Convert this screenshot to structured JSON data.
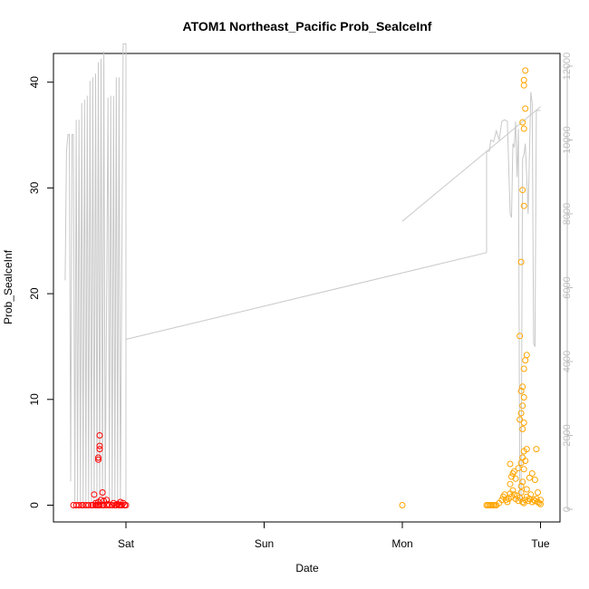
{
  "chart_data": {
    "type": "scatter",
    "title": "ATOM1 Northeast_Pacific Prob_SealceInf",
    "xlabel": "Date",
    "ylabel": "Prob_SealceInf",
    "x_unit": "days from Sat",
    "xlim": [
      -0.44,
      0.1
    ],
    "ylim": [
      -1.5,
      42.5
    ],
    "x_ticks": [
      {
        "at": 0,
        "label": "Sat"
      },
      {
        "at": 1,
        "label": "Sun"
      },
      {
        "at": 2,
        "label": "Mon"
      },
      {
        "at": 3,
        "label": "Tue"
      }
    ],
    "y_ticks": [
      0,
      10,
      20,
      30,
      40
    ],
    "secondary_axis": {
      "side": "right",
      "ticks": [
        0,
        2000,
        4000,
        6000,
        8000,
        10000,
        12000
      ],
      "ylim": [
        -150,
        12700
      ],
      "color": "#bdbdbd"
    },
    "grid": false,
    "legend": "none",
    "series": [
      {
        "color": "#ff0000",
        "marker": "open-circle",
        "points": [
          [
            -0.38,
            0
          ],
          [
            -0.36,
            0
          ],
          [
            -0.34,
            0
          ],
          [
            -0.32,
            0
          ],
          [
            -0.31,
            0
          ],
          [
            -0.29,
            0
          ],
          [
            -0.27,
            0
          ],
          [
            -0.25,
            0
          ],
          [
            -0.24,
            0
          ],
          [
            -0.22,
            0
          ],
          [
            -0.21,
            0
          ],
          [
            -0.2,
            0
          ],
          [
            -0.19,
            0
          ],
          [
            -0.17,
            0
          ],
          [
            -0.16,
            0
          ],
          [
            -0.14,
            0
          ],
          [
            -0.12,
            0
          ],
          [
            -0.1,
            0
          ],
          [
            -0.08,
            0
          ],
          [
            -0.07,
            0
          ],
          [
            -0.05,
            0
          ],
          [
            -0.04,
            0
          ],
          [
            -0.03,
            0
          ],
          [
            -0.01,
            0
          ],
          [
            0,
            0
          ],
          [
            -0.22,
            0.2
          ],
          [
            -0.2,
            0.3
          ],
          [
            -0.18,
            0.5
          ],
          [
            -0.16,
            0.4
          ],
          [
            -0.13,
            0.1
          ],
          [
            -0.09,
            0.2
          ],
          [
            -0.06,
            0.1
          ],
          [
            -0.04,
            0.3
          ],
          [
            -0.02,
            0.2
          ],
          [
            -0.23,
            1.0
          ],
          [
            -0.17,
            1.2
          ],
          [
            -0.14,
            0.5
          ],
          [
            -0.2,
            4.3
          ],
          [
            -0.2,
            4.5
          ],
          [
            -0.19,
            5.3
          ],
          [
            -0.19,
            5.6
          ],
          [
            -0.19,
            6.6
          ]
        ]
      },
      {
        "color": "#ffa500",
        "marker": "open-circle",
        "points": [
          [
            2.0,
            0
          ],
          [
            2.61,
            0
          ],
          [
            2.62,
            0
          ],
          [
            2.63,
            0
          ],
          [
            2.64,
            0
          ],
          [
            2.65,
            0
          ],
          [
            2.66,
            0
          ],
          [
            2.67,
            0
          ],
          [
            2.68,
            0
          ],
          [
            2.7,
            0.2
          ],
          [
            2.72,
            0.5
          ],
          [
            2.73,
            0.8
          ],
          [
            2.74,
            1.0
          ],
          [
            2.75,
            0.5
          ],
          [
            2.76,
            0.3
          ],
          [
            2.77,
            0.6
          ],
          [
            2.78,
            1.1
          ],
          [
            2.79,
            0.8
          ],
          [
            2.8,
            1.4
          ],
          [
            2.81,
            1.0
          ],
          [
            2.82,
            0.6
          ],
          [
            2.83,
            0.9
          ],
          [
            2.84,
            0.4
          ],
          [
            2.85,
            0.7
          ],
          [
            2.86,
            1.2
          ],
          [
            2.87,
            0.3
          ],
          [
            2.88,
            0.2
          ],
          [
            2.89,
            0.5
          ],
          [
            2.9,
            0.8
          ],
          [
            2.91,
            0.4
          ],
          [
            2.92,
            0.6
          ],
          [
            2.93,
            1.0
          ],
          [
            2.94,
            0.3
          ],
          [
            2.95,
            0.5
          ],
          [
            2.96,
            0.4
          ],
          [
            2.97,
            0.6
          ],
          [
            2.98,
            0.3
          ],
          [
            2.99,
            0.2
          ],
          [
            3.0,
            0.1
          ],
          [
            3.0,
            0.5
          ],
          [
            2.78,
            2.0
          ],
          [
            2.79,
            2.7
          ],
          [
            2.8,
            3.0
          ],
          [
            2.81,
            3.2
          ],
          [
            2.82,
            2.5
          ],
          [
            2.84,
            3.5
          ],
          [
            2.86,
            1.8
          ],
          [
            2.87,
            2.2
          ],
          [
            2.88,
            3.4
          ],
          [
            2.9,
            1.5
          ],
          [
            2.92,
            2.6
          ],
          [
            2.94,
            3.0
          ],
          [
            2.96,
            2.4
          ],
          [
            2.98,
            1.2
          ],
          [
            2.78,
            3.9
          ],
          [
            2.86,
            4.0
          ],
          [
            2.87,
            4.5
          ],
          [
            2.88,
            5.1
          ],
          [
            2.89,
            4.2
          ],
          [
            2.9,
            5.3
          ],
          [
            2.97,
            5.3
          ],
          [
            2.87,
            7.2
          ],
          [
            2.88,
            7.8
          ],
          [
            2.85,
            8.1
          ],
          [
            2.86,
            8.7
          ],
          [
            2.87,
            9.4
          ],
          [
            2.88,
            10.2
          ],
          [
            2.86,
            10.8
          ],
          [
            2.87,
            11.2
          ],
          [
            2.88,
            12.9
          ],
          [
            2.89,
            13.7
          ],
          [
            2.9,
            14.2
          ],
          [
            2.85,
            16.0
          ],
          [
            2.88,
            28.3
          ],
          [
            2.87,
            29.8
          ],
          [
            2.86,
            23.0
          ],
          [
            2.88,
            35.6
          ],
          [
            2.87,
            36.2
          ],
          [
            2.89,
            37.5
          ],
          [
            2.88,
            39.7
          ],
          [
            2.88,
            40.2
          ],
          [
            2.89,
            41.1
          ]
        ]
      }
    ],
    "secondary_line": {
      "color": "#c8c8c8",
      "points": [
        [
          -0.44,
          6200
        ],
        [
          -0.43,
          9700
        ],
        [
          -0.42,
          10150
        ],
        [
          -0.41,
          10150
        ],
        [
          -0.4,
          750
        ],
        [
          -0.39,
          10150
        ],
        [
          -0.38,
          10150
        ],
        [
          -0.37,
          200
        ],
        [
          -0.36,
          10550
        ],
        [
          -0.35,
          200
        ],
        [
          -0.34,
          10550
        ],
        [
          -0.33,
          200
        ],
        [
          -0.32,
          11000
        ],
        [
          -0.31,
          200
        ],
        [
          -0.3,
          11100
        ],
        [
          -0.29,
          200
        ],
        [
          -0.28,
          11200
        ],
        [
          -0.27,
          200
        ],
        [
          -0.26,
          11600
        ],
        [
          -0.25,
          200
        ],
        [
          -0.24,
          11700
        ],
        [
          -0.23,
          200
        ],
        [
          -0.22,
          11800
        ],
        [
          -0.21,
          200
        ],
        [
          -0.2,
          12100
        ],
        [
          -0.19,
          200
        ],
        [
          -0.18,
          12200
        ],
        [
          -0.17,
          200
        ],
        [
          -0.16,
          12400
        ],
        [
          -0.15,
          200
        ],
        [
          -0.13,
          11150
        ],
        [
          -0.12,
          200
        ],
        [
          -0.11,
          11200
        ],
        [
          -0.1,
          200
        ],
        [
          -0.09,
          11200
        ],
        [
          -0.08,
          200
        ],
        [
          -0.07,
          11700
        ],
        [
          -0.06,
          200
        ],
        [
          -0.05,
          11700
        ],
        [
          -0.04,
          200
        ],
        [
          -0.02,
          12600
        ],
        [
          0,
          12600
        ],
        [
          0,
          200
        ],
        [
          0,
          4600
        ],
        [
          2.61,
          6950
        ],
        [
          2.61,
          9700
        ],
        [
          2.63,
          9700
        ],
        [
          2.64,
          10000
        ],
        [
          2.66,
          9950
        ],
        [
          2.68,
          10250
        ],
        [
          2.7,
          10000
        ],
        [
          2.72,
          10500
        ],
        [
          2.74,
          10550
        ],
        [
          2.76,
          10500
        ],
        [
          2.78,
          8000
        ],
        [
          2.79,
          7900
        ],
        [
          2.8,
          9900
        ],
        [
          2.81,
          9800
        ],
        [
          2.82,
          10500
        ],
        [
          2.83,
          9000
        ],
        [
          2.84,
          10300
        ],
        [
          2.85,
          200
        ],
        [
          2.86,
          200
        ],
        [
          2.87,
          9500
        ],
        [
          2.88,
          9600
        ],
        [
          2.89,
          9900
        ],
        [
          2.9,
          9000
        ],
        [
          2.91,
          8000
        ],
        [
          2.92,
          9600
        ],
        [
          2.93,
          11300
        ],
        [
          2.94,
          11000
        ],
        [
          2.95,
          4500
        ],
        [
          2.96,
          4400
        ],
        [
          2.97,
          10800
        ],
        [
          3.0,
          10800
        ],
        [
          2.0,
          7800
        ],
        [
          3.0,
          10900
        ]
      ]
    }
  }
}
